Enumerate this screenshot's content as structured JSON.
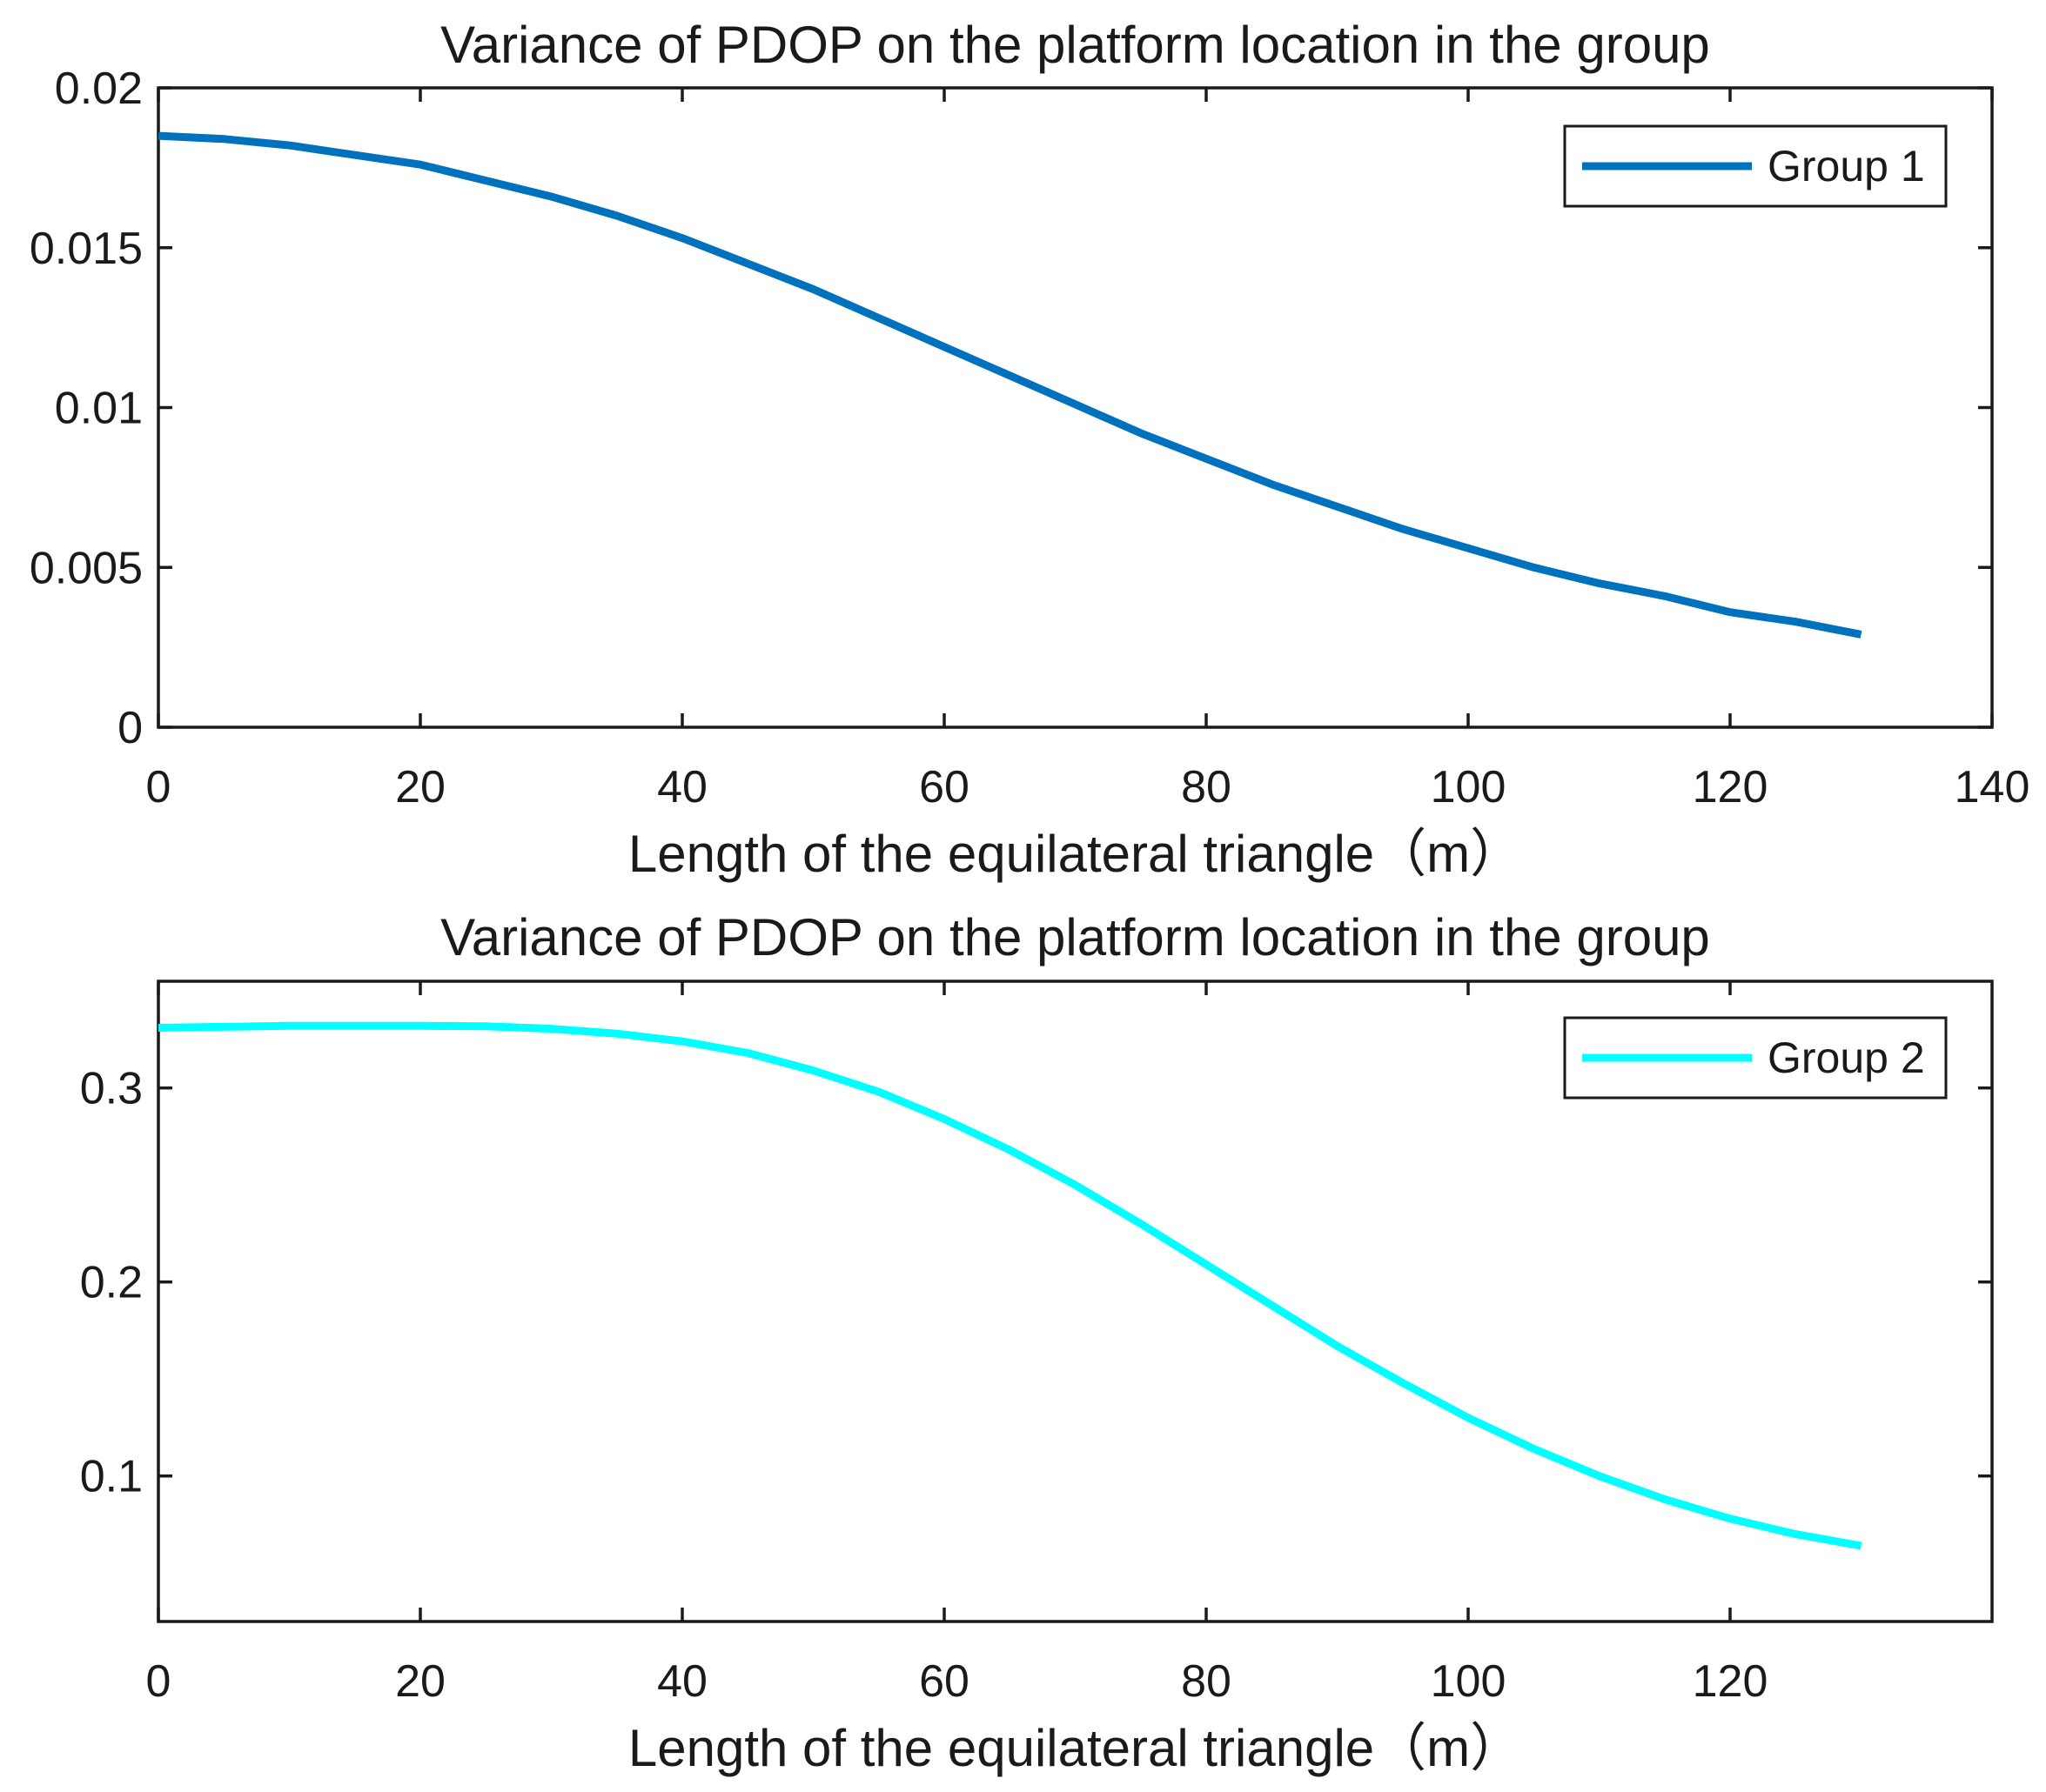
{
  "chart_data": [
    {
      "type": "line",
      "title": "Variance of PDOP on the platform location in the group",
      "xlabel": "Length of the equilateral triangle（m）",
      "ylabel": "",
      "xlim": [
        0,
        140
      ],
      "ylim": [
        0,
        0.02
      ],
      "xticks": [
        0,
        20,
        40,
        60,
        80,
        100,
        120,
        140
      ],
      "xtick_labels": [
        "0",
        "20",
        "40",
        "60",
        "80",
        "100",
        "120",
        "140"
      ],
      "yticks": [
        0,
        0.005,
        0.01,
        0.015,
        0.02
      ],
      "ytick_labels": [
        "0",
        "0.005",
        "0.01",
        "0.015",
        "0.02"
      ],
      "legend_position": "top-right",
      "grid": false,
      "series": [
        {
          "name": "Group 1",
          "color": "#0072BD",
          "x": [
            0,
            5,
            10,
            15,
            20,
            25,
            30,
            35,
            40,
            45,
            50,
            55,
            60,
            65,
            70,
            75,
            80,
            85,
            90,
            95,
            100,
            105,
            110,
            115,
            120,
            125,
            130
          ],
          "y": [
            0.0185,
            0.0184,
            0.0182,
            0.0179,
            0.0176,
            0.0171,
            0.0166,
            0.016,
            0.0153,
            0.0145,
            0.0137,
            0.0128,
            0.0119,
            0.011,
            0.0101,
            0.0092,
            0.0084,
            0.0076,
            0.0069,
            0.0062,
            0.0056,
            0.005,
            0.0045,
            0.0041,
            0.0036,
            0.0033,
            0.0029
          ]
        }
      ]
    },
    {
      "type": "line",
      "title": "Variance of PDOP on the platform location in the group",
      "xlabel": "Length of the equilateral triangle（m）",
      "ylabel": "",
      "xlim": [
        0,
        140
      ],
      "ylim": [
        0.025,
        0.355
      ],
      "xticks": [
        0,
        20,
        40,
        60,
        80,
        100,
        120
      ],
      "xtick_labels": [
        "0",
        "20",
        "40",
        "60",
        "80",
        "100",
        "120"
      ],
      "yticks": [
        0.1,
        0.2,
        0.3
      ],
      "ytick_labels": [
        "0.1",
        "0.2",
        "0.3"
      ],
      "legend_position": "top-right",
      "grid": false,
      "series": [
        {
          "name": "Group 2",
          "color": "#00FFFF",
          "x": [
            0,
            5,
            10,
            15,
            20,
            25,
            30,
            35,
            40,
            45,
            50,
            55,
            60,
            65,
            70,
            75,
            80,
            85,
            90,
            95,
            100,
            105,
            110,
            115,
            120,
            125,
            130
          ],
          "y": [
            0.331,
            0.3315,
            0.332,
            0.332,
            0.332,
            0.3318,
            0.3305,
            0.328,
            0.324,
            0.318,
            0.309,
            0.298,
            0.284,
            0.268,
            0.25,
            0.23,
            0.209,
            0.188,
            0.167,
            0.148,
            0.13,
            0.114,
            0.1,
            0.088,
            0.078,
            0.07,
            0.064
          ]
        }
      ]
    }
  ]
}
